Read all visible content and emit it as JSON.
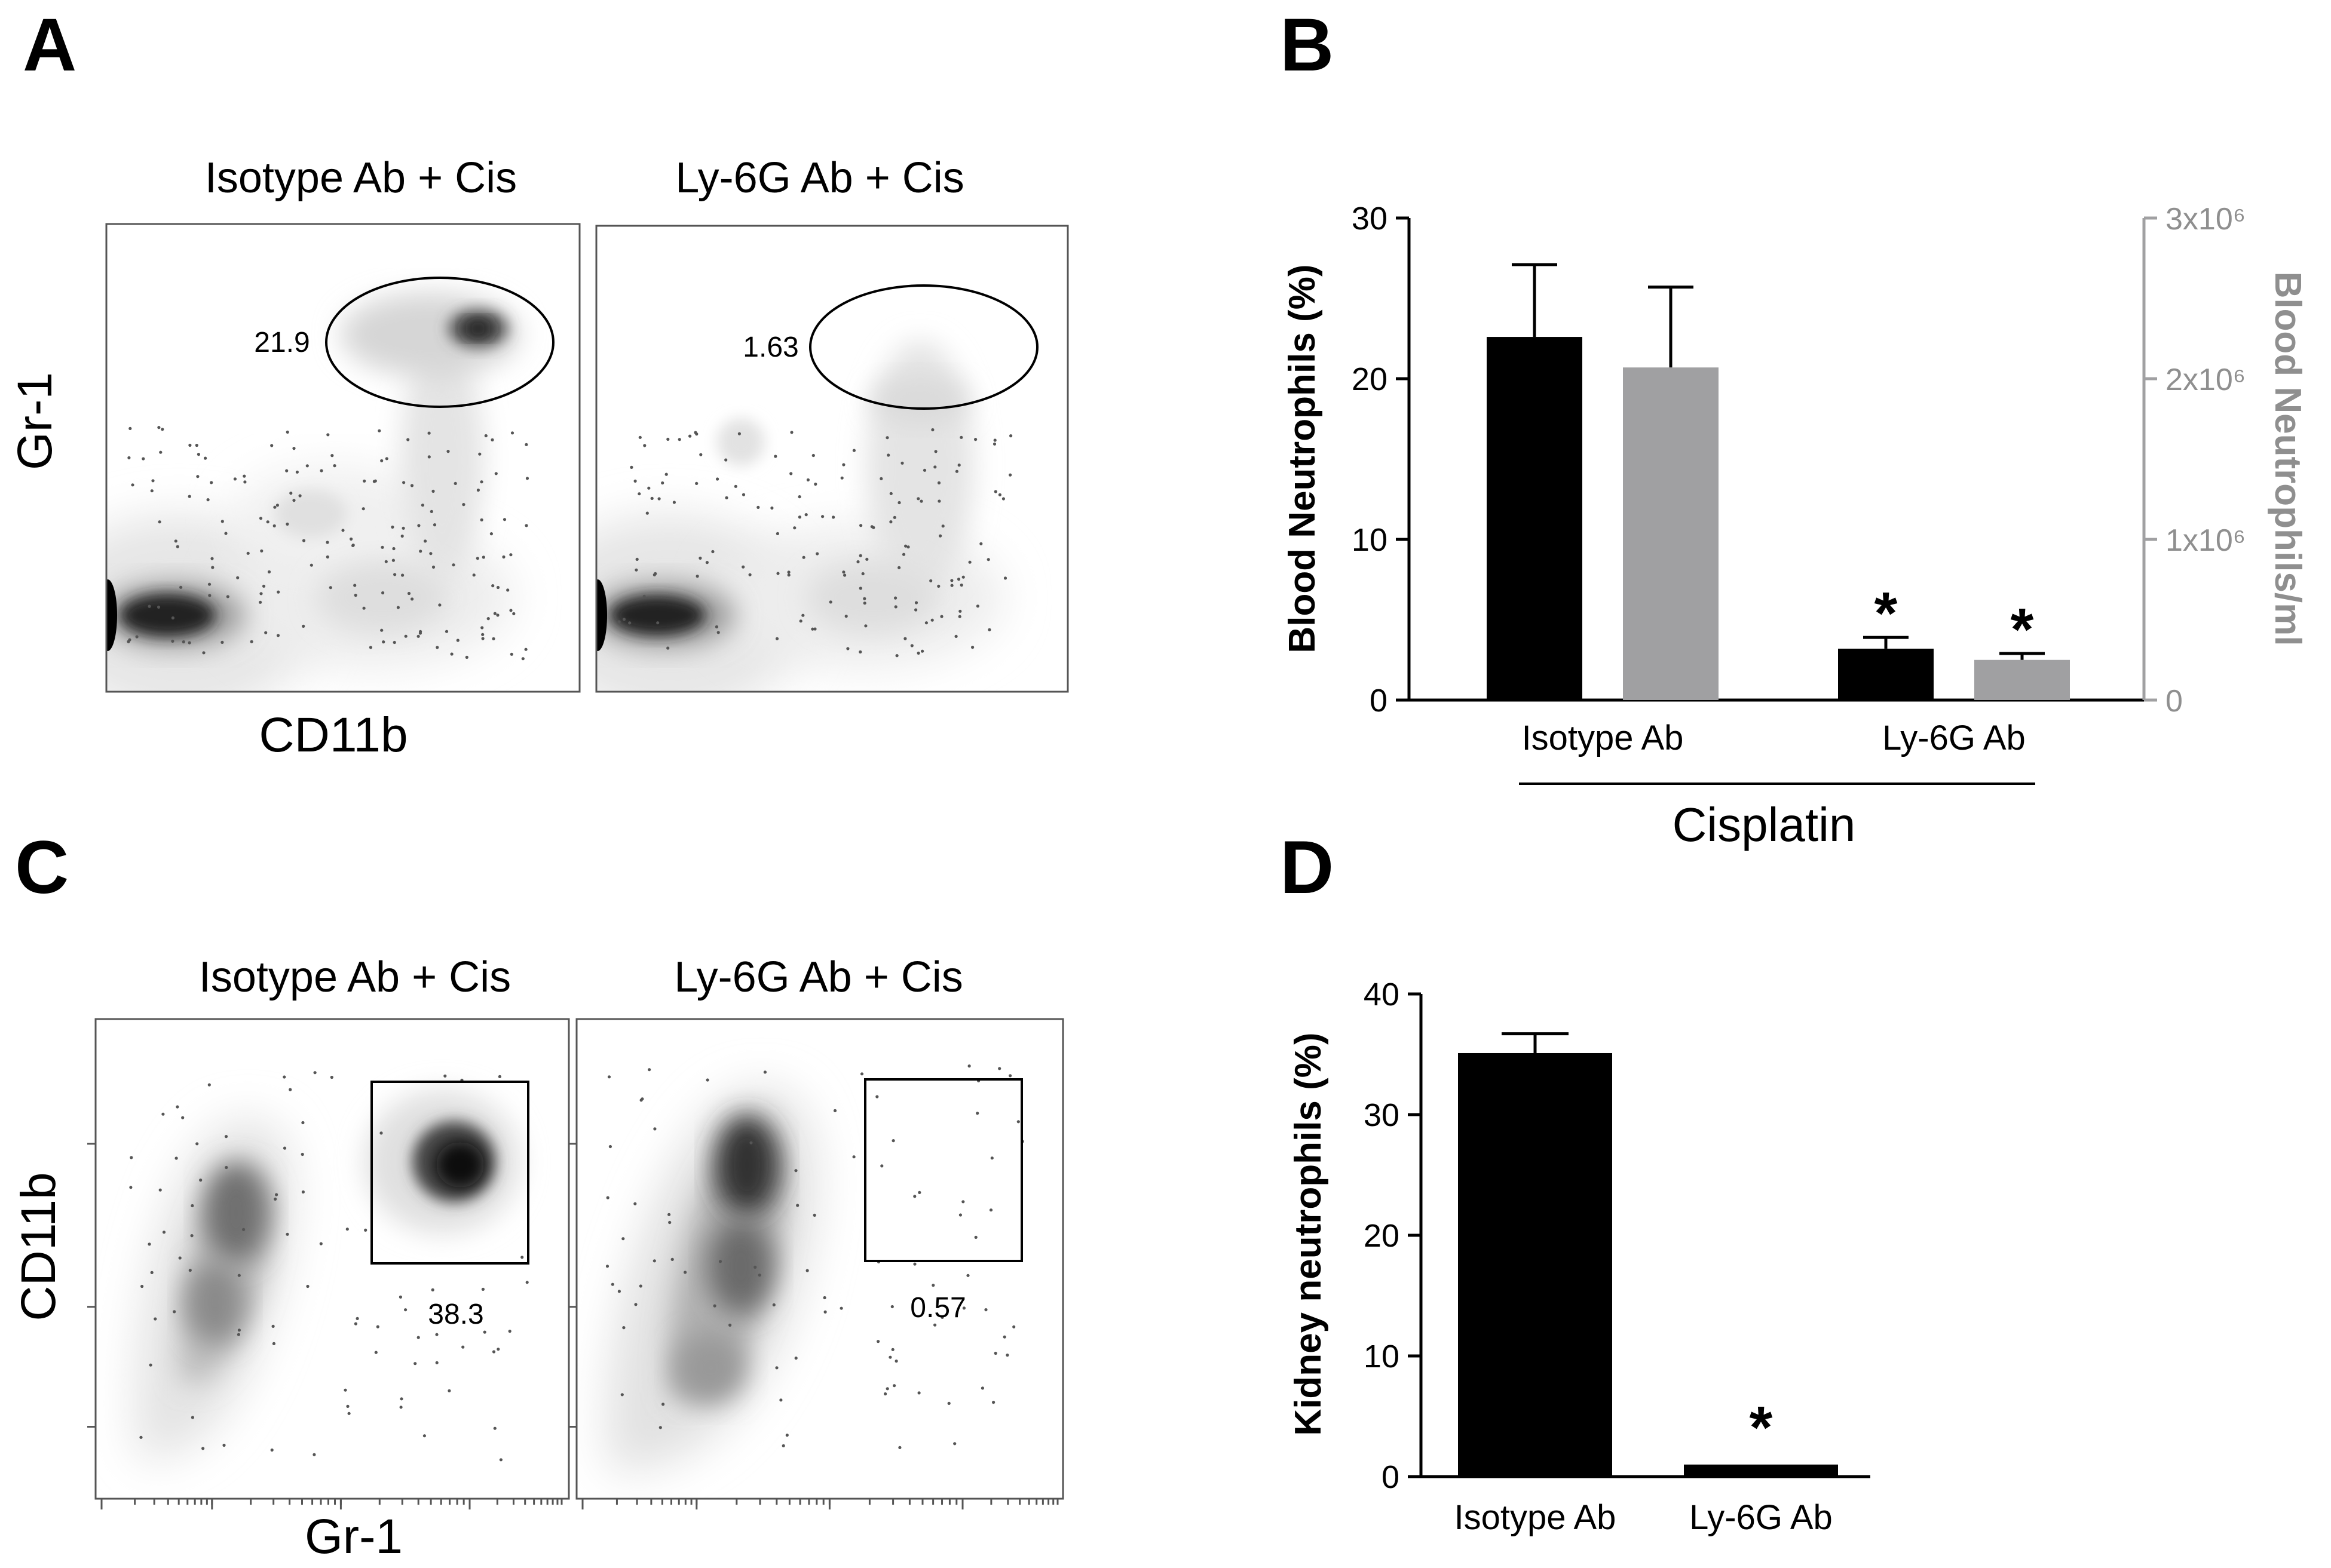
{
  "panels": {
    "A": {
      "letter": "A",
      "plots": [
        {
          "title": "Isotype Ab +  Cis",
          "gate_value": "21.9"
        },
        {
          "title": "Ly-6G Ab +  Cis",
          "gate_value": "1.63"
        }
      ],
      "x_label": "CD11b",
      "y_label": "Gr-1"
    },
    "B": {
      "letter": "B"
    },
    "C": {
      "letter": "C",
      "plots": [
        {
          "title": "Isotype Ab +  Cis",
          "gate_value": "38.3"
        },
        {
          "title": "Ly-6G Ab +  Cis",
          "gate_value": "0.57"
        }
      ],
      "x_label": "Gr-1",
      "y_label": "CD11b"
    },
    "D": {
      "letter": "D"
    }
  },
  "colors": {
    "black_bar": "#000000",
    "gray_bar": "#a0a0a2",
    "right_axis": "#8f8f8f"
  },
  "chart_data": [
    {
      "panel": "B",
      "type": "bar",
      "categories": [
        "Isotype Ab",
        "Ly-6G Ab"
      ],
      "group_label": "Cisplatin",
      "ylabel": "Blood Neutrophils (%)",
      "ylim": [
        0,
        30
      ],
      "yticks": [
        "0",
        "10",
        "20",
        "30"
      ],
      "y2label": "Blood Neutrophils/ml",
      "y2lim": [
        0,
        3000000
      ],
      "y2ticks": [
        "0",
        "1x10⁶",
        "2x10⁶",
        "3x10⁶"
      ],
      "series": [
        {
          "axis": "left",
          "color": "#000000",
          "values": [
            22.6,
            3.2
          ],
          "error": [
            4.5,
            0.7
          ],
          "significant": [
            "",
            "*"
          ]
        },
        {
          "axis": "right",
          "color": "#a0a0a2",
          "values": [
            2070000,
            250000
          ],
          "error": [
            500000,
            40000
          ],
          "significant": [
            "",
            "*"
          ]
        }
      ]
    },
    {
      "panel": "D",
      "type": "bar",
      "categories": [
        "Isotype Ab",
        "Ly-6G Ab"
      ],
      "ylabel": "Kidney neutrophils (%)",
      "ylim": [
        0,
        40
      ],
      "yticks": [
        "0",
        "10",
        "20",
        "30",
        "40"
      ],
      "series": [
        {
          "color": "#000000",
          "values": [
            35.1,
            1.0
          ],
          "error": [
            1.6,
            0
          ],
          "significant": [
            "",
            "*"
          ]
        }
      ]
    }
  ]
}
